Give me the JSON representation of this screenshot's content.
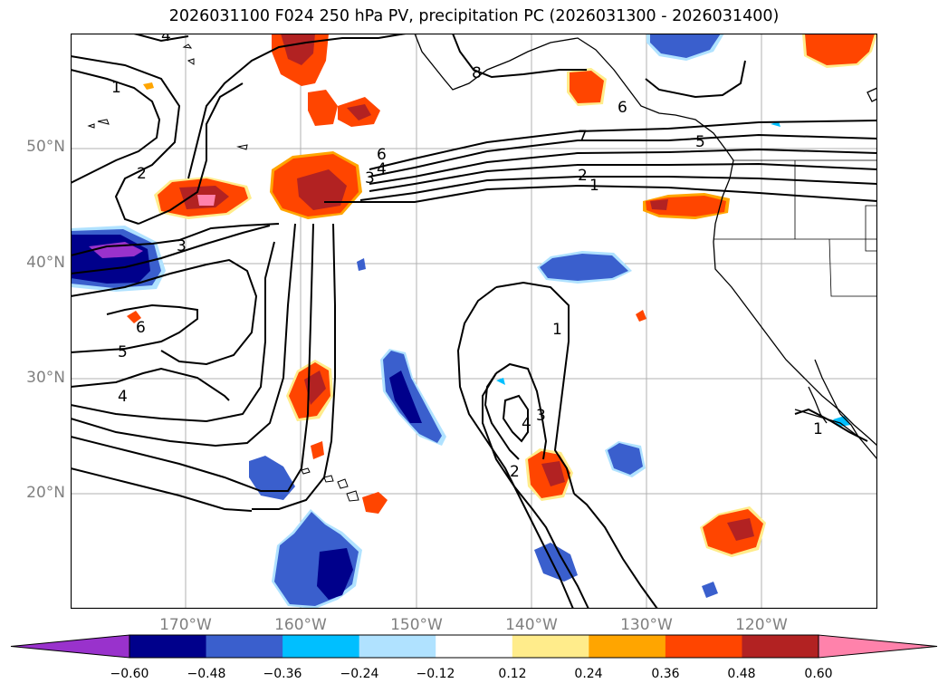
{
  "title": "2026031100 F024 250 hPa PV, precipitation PC (2026031300 - 2026031400)",
  "lat_labels": [
    "50°N",
    "40°N",
    "30°N",
    "20°N"
  ],
  "lon_labels": [
    "170°W",
    "160°W",
    "150°W",
    "140°W",
    "130°W",
    "120°W"
  ],
  "contour_labels": [
    "4",
    "1",
    "8",
    "2",
    "6",
    "7",
    "3",
    "4",
    "2",
    "1",
    "3",
    "6",
    "5",
    "4",
    "1",
    "3",
    "4",
    "2",
    "1",
    "5",
    "6"
  ],
  "colorbar": {
    "ticks": [
      "−0.60",
      "−0.48",
      "−0.36",
      "−0.24",
      "−0.12",
      "0.12",
      "0.24",
      "0.36",
      "0.48",
      "0.60"
    ],
    "colors": [
      "#9932cc",
      "#00008b",
      "#3a5fcd",
      "#00bfff",
      "#b0e2ff",
      "#ffffff",
      "#ffec8b",
      "#ffa500",
      "#ff4500",
      "#b22222",
      "#ff82ab"
    ]
  },
  "map": {
    "lat_range": [
      10,
      60
    ],
    "lon_range": [
      -180,
      -110
    ],
    "grid": true,
    "projection": "PlateCarree"
  }
}
